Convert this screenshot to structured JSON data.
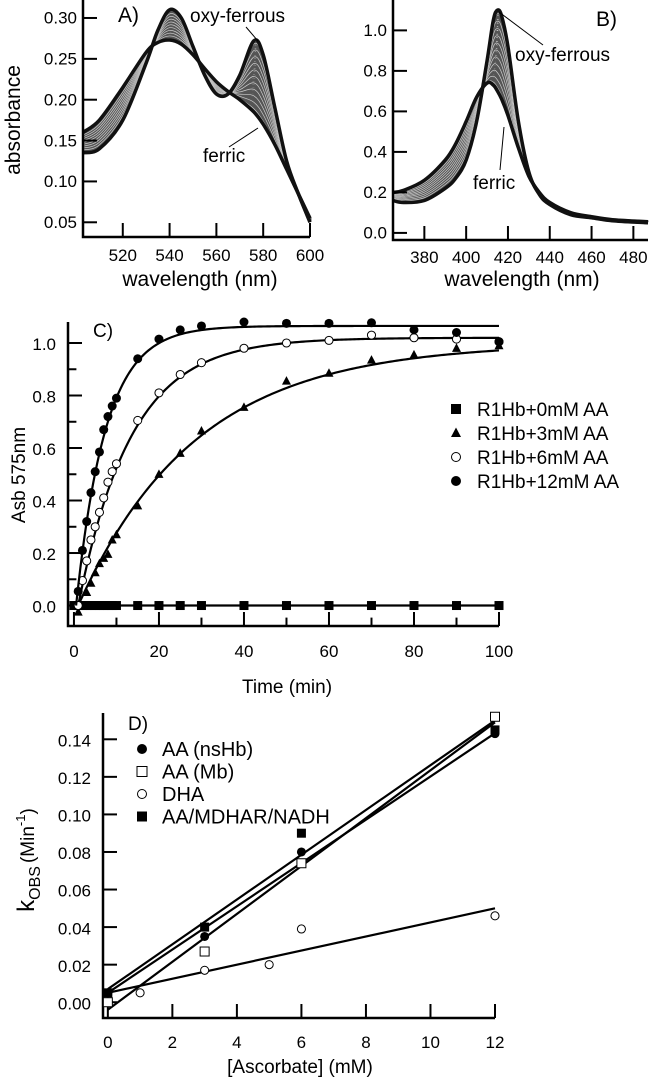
{
  "chart_data": [
    {
      "panel": "A)",
      "type": "line",
      "xlabel": "wavelength (nm)",
      "ylabel": "absorbance",
      "xlim": [
        503,
        600
      ],
      "ylim": [
        0.032,
        0.322
      ],
      "xticks": [
        520,
        540,
        560,
        580,
        600
      ],
      "yticks": [
        0.05,
        0.1,
        0.15,
        0.2,
        0.25,
        0.3
      ],
      "ytick_labels": [
        "0.05",
        "0.10",
        "0.15",
        "0.20",
        "0.25",
        "0.30"
      ],
      "annotations": [
        "oxy-ferrous",
        "ferric"
      ],
      "x": [
        503,
        510,
        520,
        530,
        535,
        540,
        545,
        550,
        555,
        560,
        565,
        570,
        576,
        580,
        585,
        590,
        595,
        600
      ],
      "series": [
        {
          "name": "ferric",
          "values": [
            0.16,
            0.175,
            0.215,
            0.258,
            0.27,
            0.273,
            0.268,
            0.255,
            0.238,
            0.222,
            0.21,
            0.2,
            0.185,
            0.17,
            0.145,
            0.115,
            0.085,
            0.055
          ]
        },
        {
          "name": "oxy-ferrous",
          "values": [
            0.135,
            0.14,
            0.175,
            0.245,
            0.285,
            0.31,
            0.3,
            0.265,
            0.23,
            0.207,
            0.207,
            0.23,
            0.272,
            0.255,
            0.19,
            0.125,
            0.085,
            0.05
          ]
        }
      ]
    },
    {
      "panel": "B)",
      "type": "line",
      "xlabel": "wavelength (nm)",
      "ylabel": "",
      "xlim": [
        365,
        487
      ],
      "ylim": [
        -0.035,
        1.15
      ],
      "xticks": [
        380,
        400,
        420,
        440,
        460,
        480
      ],
      "yticks": [
        0.0,
        0.2,
        0.4,
        0.6,
        0.8,
        1.0
      ],
      "ytick_labels": [
        "0.0",
        "0.2",
        "0.4",
        "0.6",
        "0.8",
        "1.0"
      ],
      "annotations": [
        "oxy-ferrous",
        "ferric"
      ],
      "x": [
        365,
        370,
        380,
        390,
        395,
        400,
        405,
        410,
        413,
        415,
        417,
        420,
        425,
        430,
        435,
        440,
        450,
        460,
        470,
        487
      ],
      "series": [
        {
          "name": "ferric",
          "values": [
            0.2,
            0.21,
            0.26,
            0.36,
            0.44,
            0.55,
            0.67,
            0.74,
            0.73,
            0.7,
            0.66,
            0.58,
            0.42,
            0.28,
            0.2,
            0.15,
            0.1,
            0.08,
            0.065,
            0.055
          ]
        },
        {
          "name": "oxy-ferrous",
          "values": [
            0.16,
            0.15,
            0.16,
            0.22,
            0.27,
            0.36,
            0.55,
            0.85,
            1.05,
            1.1,
            1.07,
            0.92,
            0.55,
            0.3,
            0.19,
            0.14,
            0.09,
            0.075,
            0.06,
            0.05
          ]
        }
      ]
    },
    {
      "panel": "C)",
      "type": "scatter",
      "xlabel": "Time (min)",
      "ylabel": "Asb 575nm",
      "xlim": [
        -1.4,
        100
      ],
      "ylim": [
        -0.078,
        1.08
      ],
      "xticks": [
        0,
        20,
        40,
        60,
        80,
        100
      ],
      "yticks": [
        0.0,
        0.2,
        0.4,
        0.6,
        0.8,
        1.0
      ],
      "ytick_labels": [
        "0.0",
        "0.2",
        "0.4",
        "0.6",
        "0.8",
        "1.0"
      ],
      "legend": "right",
      "series": [
        {
          "name": "R1Hb+0mM AA",
          "marker": "filled-square",
          "x": [
            0,
            1,
            2,
            3,
            4,
            5,
            6,
            7,
            8,
            9,
            10,
            15,
            20,
            25,
            30,
            40,
            50,
            60,
            70,
            80,
            90,
            100
          ],
          "y": [
            0,
            0,
            0,
            0,
            0,
            0,
            0,
            0,
            0,
            0,
            0,
            0,
            0,
            0,
            0,
            0,
            0,
            0,
            0,
            0,
            0,
            0
          ],
          "fit": {
            "a": 0,
            "k": 0,
            "t0": 0
          }
        },
        {
          "name": "R1Hb+3mM AA",
          "marker": "filled-triangle",
          "x": [
            1,
            3,
            4,
            5,
            6,
            7,
            8,
            9,
            10,
            15,
            20,
            25,
            30,
            40,
            50,
            60,
            70,
            80,
            90,
            100
          ],
          "y": [
            -0.025,
            0.05,
            0.085,
            0.125,
            0.16,
            0.18,
            0.195,
            0.25,
            0.27,
            0.38,
            0.5,
            0.58,
            0.665,
            0.755,
            0.855,
            0.885,
            0.935,
            0.955,
            0.98,
            0.99
          ],
          "fit": {
            "a": 1.0,
            "k": 0.036,
            "t0": 1
          }
        },
        {
          "name": "R1Hb+6mM AA",
          "marker": "open-circle",
          "x": [
            1,
            2,
            3,
            4,
            5,
            6,
            7,
            8,
            9,
            10,
            15,
            20,
            25,
            30,
            40,
            50,
            60,
            70,
            80,
            90,
            100
          ],
          "y": [
            0.0,
            0.095,
            0.17,
            0.25,
            0.3,
            0.355,
            0.41,
            0.47,
            0.51,
            0.54,
            0.705,
            0.81,
            0.88,
            0.925,
            0.98,
            1.0,
            1.01,
            1.03,
            1.02,
            1.015,
            1.005
          ],
          "fit": {
            "a": 1.02,
            "k": 0.08,
            "t0": 1
          }
        },
        {
          "name": "R1Hb+12mM AA",
          "marker": "filled-circle",
          "x": [
            1,
            2,
            3,
            4,
            5,
            6,
            7,
            8,
            9,
            10,
            15,
            20,
            25,
            30,
            40,
            50,
            60,
            70,
            80,
            90,
            100
          ],
          "y": [
            0.054,
            0.21,
            0.32,
            0.43,
            0.51,
            0.585,
            0.67,
            0.72,
            0.76,
            0.79,
            0.94,
            1.015,
            1.05,
            1.065,
            1.08,
            1.075,
            1.075,
            1.077,
            1.05,
            1.04,
            1.005
          ],
          "fit": {
            "a": 1.065,
            "k": 0.143,
            "t0": 0.5
          }
        }
      ]
    },
    {
      "panel": "D)",
      "type": "scatter",
      "xlabel": "[Ascorbate] (mM)",
      "ylabel": {
        "main": "k",
        "sub": "OBS",
        "unit": "(Min",
        "sup": "-1",
        "close": ")"
      },
      "xlim": [
        -0.15,
        12
      ],
      "ylim": [
        -0.0084,
        0.154
      ],
      "xticks": [
        0,
        2,
        4,
        6,
        8,
        10,
        12
      ],
      "yticks": [
        0.0,
        0.02,
        0.04,
        0.06,
        0.08,
        0.1,
        0.12,
        0.14
      ],
      "ytick_labels": [
        "0.00",
        "0.02",
        "0.04",
        "0.06",
        "0.08",
        "0.10",
        "0.12",
        "0.14"
      ],
      "legend": "top-left",
      "series": [
        {
          "name": "AA (nsHb)",
          "marker": "filled-circle",
          "x": [
            0,
            3,
            6,
            12
          ],
          "y": [
            0.005,
            0.035,
            0.08,
            0.143
          ],
          "fit": {
            "intercept": 0.005,
            "slope": 0.01152
          }
        },
        {
          "name": "AA (Mb)",
          "marker": "open-square",
          "x": [
            0,
            3,
            6,
            12
          ],
          "y": [
            0.0,
            0.027,
            0.074,
            0.152
          ],
          "fit": {
            "intercept": -0.004,
            "slope": 0.01275
          }
        },
        {
          "name": "DHA",
          "marker": "open-circle",
          "x": [
            1,
            3,
            5,
            6,
            12
          ],
          "y": [
            0.005,
            0.017,
            0.02,
            0.039,
            0.046
          ],
          "fit": {
            "intercept": 0.005,
            "slope": 0.00375
          }
        },
        {
          "name": "AA/MDHAR/NADH",
          "marker": "filled-square",
          "x": [
            0,
            3,
            6,
            12
          ],
          "y": [
            0.005,
            0.04,
            0.09,
            0.145
          ],
          "fit": {
            "intercept": 0.007,
            "slope": 0.01192
          }
        }
      ]
    }
  ]
}
